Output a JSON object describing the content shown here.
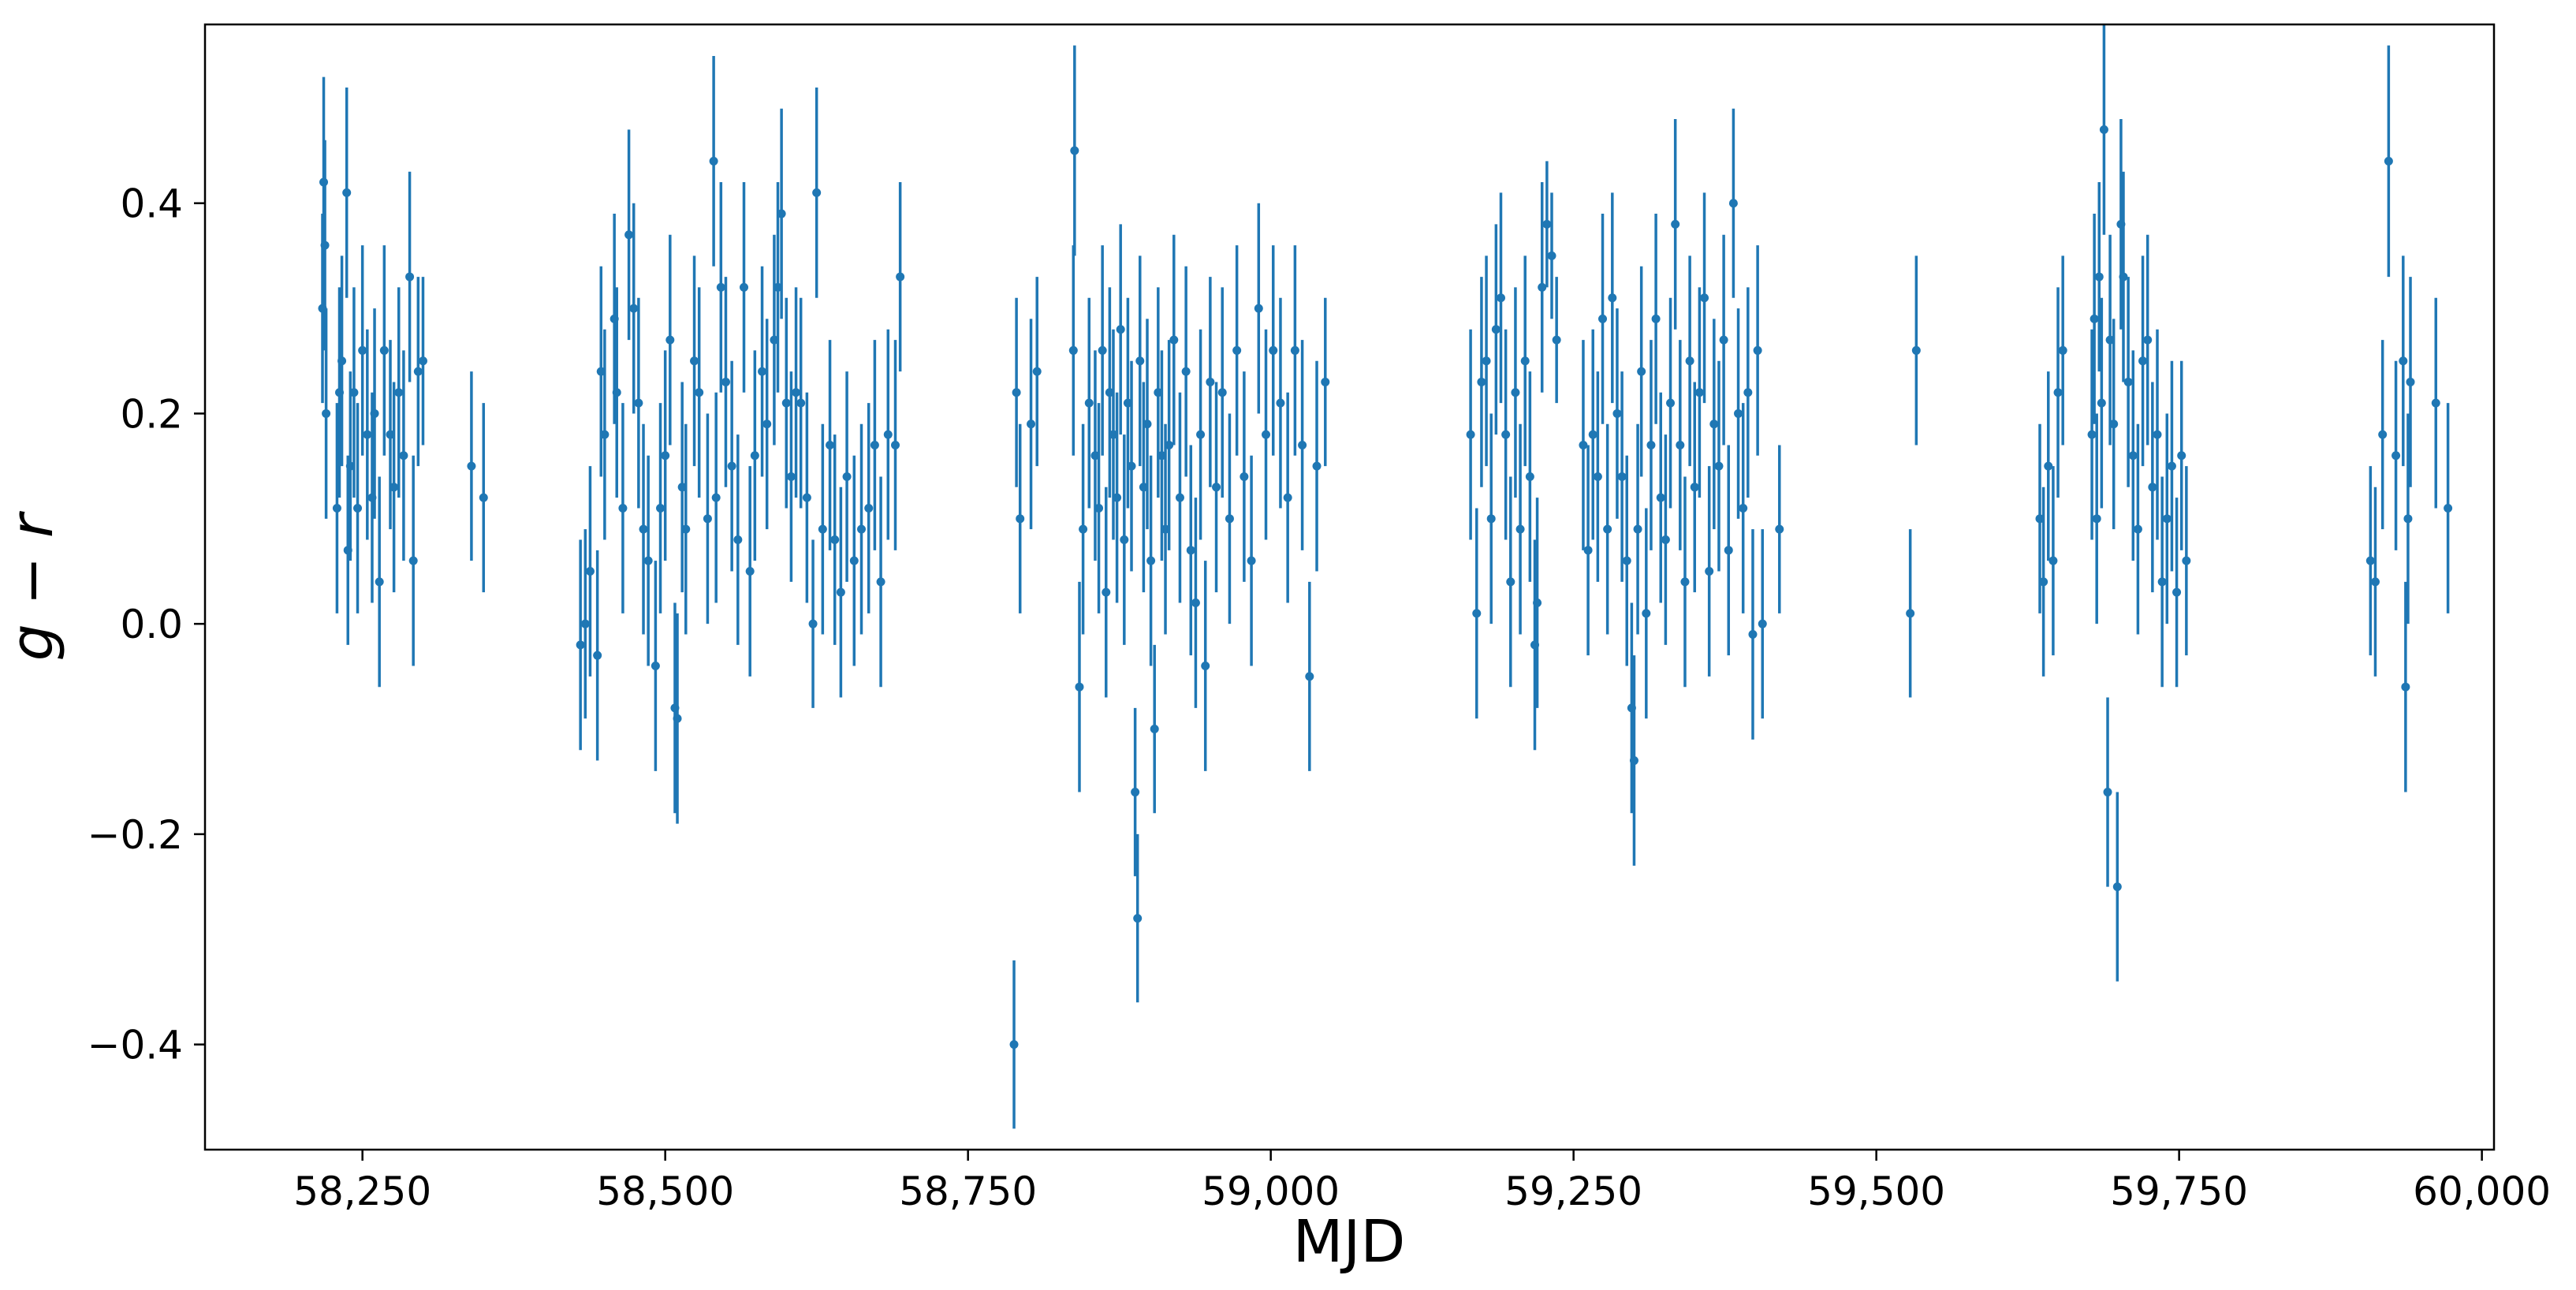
{
  "chart_data": {
    "type": "scatter",
    "xlabel": "MJD",
    "ylabel": "g − r",
    "xlim": [
      58120,
      60010
    ],
    "ylim": [
      -0.5,
      0.57
    ],
    "x_ticks": [
      58250,
      58500,
      58750,
      59000,
      59250,
      59500,
      59750,
      60000
    ],
    "x_tick_labels": [
      "58,250",
      "58,500",
      "58,750",
      "59,000",
      "59,250",
      "59,500",
      "59,750",
      "60,000"
    ],
    "y_ticks": [
      0.4,
      0.2,
      0.0,
      -0.2,
      -0.4
    ],
    "y_tick_labels": [
      "0.4",
      "0.2",
      "0.0",
      "−0.2",
      "−0.4"
    ],
    "grid": false,
    "legend": "none",
    "series_color": "#1f77b4",
    "points": [
      [
        58217,
        0.3,
        0.09
      ],
      [
        58218,
        0.42,
        0.1
      ],
      [
        58219,
        0.36,
        0.1
      ],
      [
        58220,
        0.2,
        0.1
      ],
      [
        58229,
        0.11,
        0.1
      ],
      [
        58231,
        0.22,
        0.1
      ],
      [
        58233,
        0.25,
        0.1
      ],
      [
        58237,
        0.41,
        0.1
      ],
      [
        58238,
        0.07,
        0.09
      ],
      [
        58240,
        0.15,
        0.09
      ],
      [
        58243,
        0.22,
        0.1
      ],
      [
        58246,
        0.11,
        0.1
      ],
      [
        58250,
        0.26,
        0.1
      ],
      [
        58254,
        0.18,
        0.1
      ],
      [
        58258,
        0.12,
        0.1
      ],
      [
        58260,
        0.2,
        0.1
      ],
      [
        58264,
        0.04,
        0.1
      ],
      [
        58268,
        0.26,
        0.1
      ],
      [
        58273,
        0.18,
        0.09
      ],
      [
        58276,
        0.13,
        0.1
      ],
      [
        58280,
        0.22,
        0.1
      ],
      [
        58284,
        0.16,
        0.1
      ],
      [
        58289,
        0.33,
        0.1
      ],
      [
        58292,
        0.06,
        0.1
      ],
      [
        58296,
        0.24,
        0.09
      ],
      [
        58300,
        0.25,
        0.08
      ],
      [
        58340,
        0.15,
        0.09
      ],
      [
        58350,
        0.12,
        0.09
      ],
      [
        58430,
        -0.02,
        0.1
      ],
      [
        58434,
        0.0,
        0.09
      ],
      [
        58438,
        0.05,
        0.1
      ],
      [
        58444,
        -0.03,
        0.1
      ],
      [
        58447,
        0.24,
        0.1
      ],
      [
        58450,
        0.18,
        0.1
      ],
      [
        58458,
        0.29,
        0.1
      ],
      [
        58460,
        0.22,
        0.1
      ],
      [
        58465,
        0.11,
        0.1
      ],
      [
        58470,
        0.37,
        0.1
      ],
      [
        58474,
        0.3,
        0.1
      ],
      [
        58478,
        0.21,
        0.1
      ],
      [
        58482,
        0.09,
        0.1
      ],
      [
        58486,
        0.06,
        0.1
      ],
      [
        58492,
        -0.04,
        0.1
      ],
      [
        58496,
        0.11,
        0.1
      ],
      [
        58500,
        0.16,
        0.1
      ],
      [
        58504,
        0.27,
        0.1
      ],
      [
        58508,
        -0.08,
        0.1
      ],
      [
        58510,
        -0.09,
        0.1
      ],
      [
        58514,
        0.13,
        0.1
      ],
      [
        58517,
        0.09,
        0.1
      ],
      [
        58524,
        0.25,
        0.1
      ],
      [
        58528,
        0.22,
        0.1
      ],
      [
        58535,
        0.1,
        0.1
      ],
      [
        58540,
        0.44,
        0.1
      ],
      [
        58542,
        0.12,
        0.1
      ],
      [
        58546,
        0.32,
        0.1
      ],
      [
        58550,
        0.23,
        0.1
      ],
      [
        58555,
        0.15,
        0.1
      ],
      [
        58560,
        0.08,
        0.1
      ],
      [
        58565,
        0.32,
        0.1
      ],
      [
        58570,
        0.05,
        0.1
      ],
      [
        58574,
        0.16,
        0.1
      ],
      [
        58580,
        0.24,
        0.1
      ],
      [
        58584,
        0.19,
        0.1
      ],
      [
        58590,
        0.27,
        0.1
      ],
      [
        58593,
        0.32,
        0.1
      ],
      [
        58596,
        0.39,
        0.1
      ],
      [
        58600,
        0.21,
        0.1
      ],
      [
        58604,
        0.14,
        0.1
      ],
      [
        58608,
        0.22,
        0.1
      ],
      [
        58612,
        0.21,
        0.1
      ],
      [
        58617,
        0.12,
        0.1
      ],
      [
        58622,
        0.0,
        0.08
      ],
      [
        58625,
        0.41,
        0.1
      ],
      [
        58630,
        0.09,
        0.1
      ],
      [
        58636,
        0.17,
        0.1
      ],
      [
        58640,
        0.08,
        0.1
      ],
      [
        58645,
        0.03,
        0.1
      ],
      [
        58650,
        0.14,
        0.1
      ],
      [
        58656,
        0.06,
        0.1
      ],
      [
        58662,
        0.09,
        0.1
      ],
      [
        58668,
        0.11,
        0.1
      ],
      [
        58673,
        0.17,
        0.1
      ],
      [
        58678,
        0.04,
        0.1
      ],
      [
        58684,
        0.18,
        0.1
      ],
      [
        58690,
        0.17,
        0.1
      ],
      [
        58694,
        0.33,
        0.09
      ],
      [
        58788,
        -0.4,
        0.08
      ],
      [
        58790,
        0.22,
        0.09
      ],
      [
        58793,
        0.1,
        0.09
      ],
      [
        58802,
        0.19,
        0.1
      ],
      [
        58807,
        0.24,
        0.09
      ],
      [
        58837,
        0.26,
        0.1
      ],
      [
        58838,
        0.45,
        0.1
      ],
      [
        58842,
        -0.06,
        0.1
      ],
      [
        58845,
        0.09,
        0.1
      ],
      [
        58850,
        0.21,
        0.1
      ],
      [
        58855,
        0.16,
        0.1
      ],
      [
        58858,
        0.11,
        0.1
      ],
      [
        58861,
        0.26,
        0.1
      ],
      [
        58864,
        0.03,
        0.1
      ],
      [
        58867,
        0.22,
        0.1
      ],
      [
        58870,
        0.18,
        0.1
      ],
      [
        58873,
        0.12,
        0.1
      ],
      [
        58876,
        0.28,
        0.1
      ],
      [
        58879,
        0.08,
        0.1
      ],
      [
        58882,
        0.21,
        0.1
      ],
      [
        58885,
        0.15,
        0.1
      ],
      [
        58888,
        -0.16,
        0.08
      ],
      [
        58890,
        -0.28,
        0.08
      ],
      [
        58892,
        0.25,
        0.1
      ],
      [
        58895,
        0.13,
        0.1
      ],
      [
        58898,
        0.19,
        0.1
      ],
      [
        58901,
        0.06,
        0.1
      ],
      [
        58904,
        -0.1,
        0.08
      ],
      [
        58907,
        0.22,
        0.1
      ],
      [
        58910,
        0.16,
        0.1
      ],
      [
        58913,
        0.09,
        0.1
      ],
      [
        58916,
        0.17,
        0.1
      ],
      [
        58920,
        0.27,
        0.1
      ],
      [
        58925,
        0.12,
        0.1
      ],
      [
        58930,
        0.24,
        0.1
      ],
      [
        58934,
        0.07,
        0.1
      ],
      [
        58938,
        0.02,
        0.1
      ],
      [
        58942,
        0.18,
        0.1
      ],
      [
        58946,
        -0.04,
        0.1
      ],
      [
        58950,
        0.23,
        0.1
      ],
      [
        58955,
        0.13,
        0.1
      ],
      [
        58960,
        0.22,
        0.1
      ],
      [
        58966,
        0.1,
        0.1
      ],
      [
        58972,
        0.26,
        0.1
      ],
      [
        58978,
        0.14,
        0.1
      ],
      [
        58984,
        0.06,
        0.1
      ],
      [
        58990,
        0.3,
        0.1
      ],
      [
        58996,
        0.18,
        0.1
      ],
      [
        59002,
        0.26,
        0.1
      ],
      [
        59008,
        0.21,
        0.1
      ],
      [
        59014,
        0.12,
        0.1
      ],
      [
        59020,
        0.26,
        0.1
      ],
      [
        59026,
        0.17,
        0.1
      ],
      [
        59032,
        -0.05,
        0.09
      ],
      [
        59038,
        0.15,
        0.1
      ],
      [
        59045,
        0.23,
        0.08
      ],
      [
        59165,
        0.18,
        0.1
      ],
      [
        59170,
        0.01,
        0.1
      ],
      [
        59174,
        0.23,
        0.1
      ],
      [
        59178,
        0.25,
        0.1
      ],
      [
        59182,
        0.1,
        0.1
      ],
      [
        59186,
        0.28,
        0.1
      ],
      [
        59190,
        0.31,
        0.1
      ],
      [
        59194,
        0.18,
        0.1
      ],
      [
        59198,
        0.04,
        0.1
      ],
      [
        59202,
        0.22,
        0.1
      ],
      [
        59206,
        0.09,
        0.1
      ],
      [
        59210,
        0.25,
        0.1
      ],
      [
        59214,
        0.14,
        0.1
      ],
      [
        59218,
        -0.02,
        0.1
      ],
      [
        59220,
        0.02,
        0.1
      ],
      [
        59224,
        0.32,
        0.1
      ],
      [
        59228,
        0.38,
        0.06
      ],
      [
        59232,
        0.35,
        0.06
      ],
      [
        59236,
        0.27,
        0.06
      ],
      [
        59258,
        0.17,
        0.1
      ],
      [
        59262,
        0.07,
        0.1
      ],
      [
        59266,
        0.18,
        0.1
      ],
      [
        59270,
        0.14,
        0.1
      ],
      [
        59274,
        0.29,
        0.1
      ],
      [
        59278,
        0.09,
        0.1
      ],
      [
        59282,
        0.31,
        0.1
      ],
      [
        59286,
        0.2,
        0.1
      ],
      [
        59290,
        0.14,
        0.1
      ],
      [
        59294,
        0.06,
        0.1
      ],
      [
        59298,
        -0.08,
        0.1
      ],
      [
        59300,
        -0.13,
        0.1
      ],
      [
        59303,
        0.09,
        0.1
      ],
      [
        59306,
        0.24,
        0.1
      ],
      [
        59310,
        0.01,
        0.1
      ],
      [
        59314,
        0.17,
        0.1
      ],
      [
        59318,
        0.29,
        0.1
      ],
      [
        59322,
        0.12,
        0.1
      ],
      [
        59326,
        0.08,
        0.1
      ],
      [
        59330,
        0.21,
        0.1
      ],
      [
        59334,
        0.38,
        0.1
      ],
      [
        59338,
        0.17,
        0.1
      ],
      [
        59342,
        0.04,
        0.1
      ],
      [
        59346,
        0.25,
        0.1
      ],
      [
        59350,
        0.13,
        0.1
      ],
      [
        59354,
        0.22,
        0.1
      ],
      [
        59358,
        0.31,
        0.1
      ],
      [
        59362,
        0.05,
        0.1
      ],
      [
        59366,
        0.19,
        0.1
      ],
      [
        59370,
        0.15,
        0.1
      ],
      [
        59374,
        0.27,
        0.1
      ],
      [
        59378,
        0.07,
        0.1
      ],
      [
        59382,
        0.4,
        0.09
      ],
      [
        59386,
        0.2,
        0.1
      ],
      [
        59390,
        0.11,
        0.1
      ],
      [
        59394,
        0.22,
        0.1
      ],
      [
        59398,
        -0.01,
        0.1
      ],
      [
        59402,
        0.26,
        0.1
      ],
      [
        59406,
        0.0,
        0.09
      ],
      [
        59420,
        0.09,
        0.08
      ],
      [
        59528,
        0.01,
        0.08
      ],
      [
        59533,
        0.26,
        0.09
      ],
      [
        59635,
        0.1,
        0.09
      ],
      [
        59638,
        0.04,
        0.09
      ],
      [
        59642,
        0.15,
        0.09
      ],
      [
        59646,
        0.06,
        0.09
      ],
      [
        59650,
        0.22,
        0.1
      ],
      [
        59654,
        0.26,
        0.09
      ],
      [
        59678,
        0.18,
        0.1
      ],
      [
        59680,
        0.29,
        0.1
      ],
      [
        59682,
        0.1,
        0.1
      ],
      [
        59684,
        0.33,
        0.09
      ],
      [
        59686,
        0.21,
        0.1
      ],
      [
        59688,
        0.47,
        0.1
      ],
      [
        59691,
        -0.16,
        0.09
      ],
      [
        59693,
        0.27,
        0.1
      ],
      [
        59696,
        0.19,
        0.1
      ],
      [
        59699,
        -0.25,
        0.09
      ],
      [
        59702,
        0.38,
        0.1
      ],
      [
        59704,
        0.33,
        0.1
      ],
      [
        59708,
        0.23,
        0.1
      ],
      [
        59712,
        0.16,
        0.1
      ],
      [
        59716,
        0.09,
        0.1
      ],
      [
        59720,
        0.25,
        0.1
      ],
      [
        59724,
        0.27,
        0.1
      ],
      [
        59728,
        0.13,
        0.1
      ],
      [
        59732,
        0.18,
        0.1
      ],
      [
        59736,
        0.04,
        0.1
      ],
      [
        59740,
        0.1,
        0.1
      ],
      [
        59744,
        0.15,
        0.1
      ],
      [
        59748,
        0.03,
        0.09
      ],
      [
        59752,
        0.16,
        0.09
      ],
      [
        59756,
        0.06,
        0.09
      ],
      [
        59908,
        0.06,
        0.09
      ],
      [
        59912,
        0.04,
        0.09
      ],
      [
        59918,
        0.18,
        0.09
      ],
      [
        59923,
        0.44,
        0.11
      ],
      [
        59929,
        0.16,
        0.09
      ],
      [
        59935,
        0.25,
        0.1
      ],
      [
        59937,
        -0.06,
        0.1
      ],
      [
        59939,
        0.1,
        0.1
      ],
      [
        59941,
        0.23,
        0.1
      ],
      [
        59962,
        0.21,
        0.1
      ],
      [
        59972,
        0.11,
        0.1
      ]
    ]
  }
}
